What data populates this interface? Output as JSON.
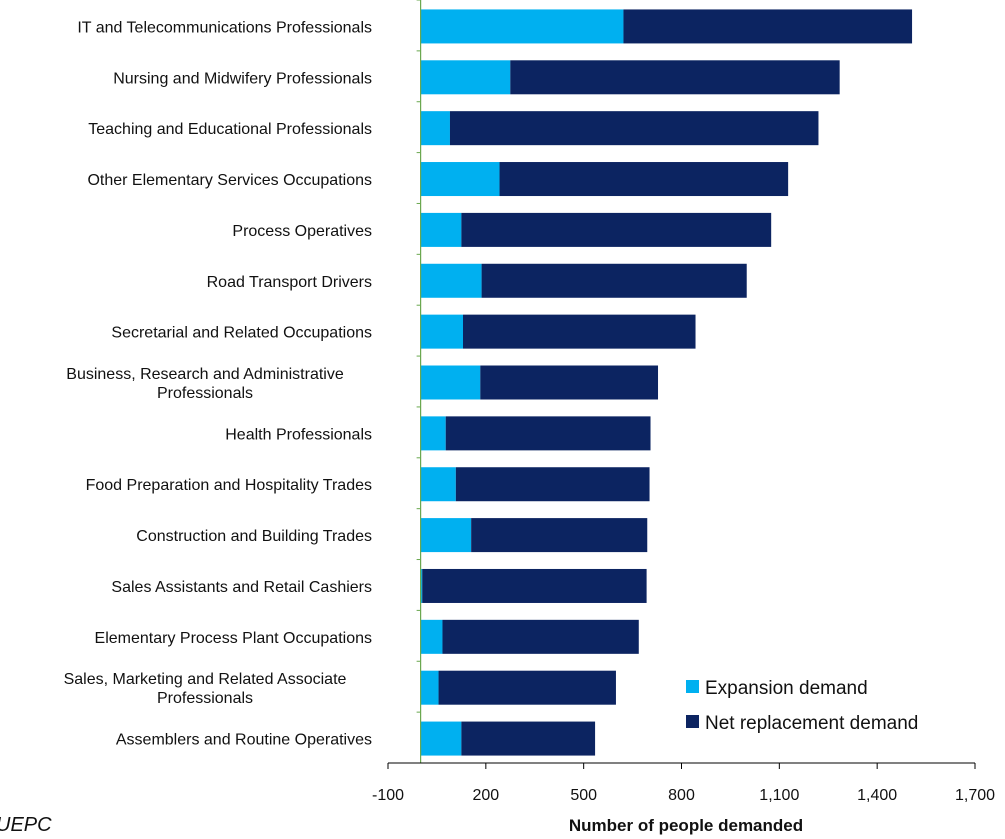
{
  "chart_data": {
    "type": "bar",
    "orientation": "horizontal",
    "stacked": true,
    "categories": [
      "IT and Telecommunications Professionals",
      "Nursing and Midwifery Professionals",
      "Teaching and Educational Professionals",
      "Other Elementary Services Occupations",
      "Process Operatives",
      "Road Transport Drivers",
      "Secretarial and Related Occupations",
      "Business, Research and Administrative Professionals",
      "Health Professionals",
      "Food Preparation and Hospitality Trades",
      "Construction and Building Trades",
      "Sales Assistants and Retail Cashiers",
      "Elementary Process Plant Occupations",
      "Sales, Marketing and Related Associate Professionals",
      "Assemblers and Routine Operatives"
    ],
    "category_lines": [
      [
        "IT and Telecommunications Professionals"
      ],
      [
        "Nursing and Midwifery Professionals"
      ],
      [
        "Teaching and Educational Professionals"
      ],
      [
        "Other Elementary Services Occupations"
      ],
      [
        "Process Operatives"
      ],
      [
        "Road Transport Drivers"
      ],
      [
        "Secretarial and Related Occupations"
      ],
      [
        "Business, Research and Administrative",
        "Professionals"
      ],
      [
        "Health Professionals"
      ],
      [
        "Food Preparation and Hospitality Trades"
      ],
      [
        "Construction and Building Trades"
      ],
      [
        "Sales Assistants and Retail Cashiers"
      ],
      [
        "Elementary Process Plant Occupations"
      ],
      [
        "Sales, Marketing and Related Associate",
        "Professionals"
      ],
      [
        "Assemblers and Routine Operatives"
      ]
    ],
    "series": [
      {
        "name": "Expansion demand",
        "color": "#00b0f0",
        "values": [
          622,
          275,
          90,
          242,
          125,
          187,
          130,
          183,
          77,
          108,
          155,
          5,
          67,
          55,
          125
        ]
      },
      {
        "name": "Net replacement demand",
        "color": "#0c2461",
        "values": [
          885,
          1010,
          1130,
          885,
          950,
          813,
          713,
          545,
          628,
          594,
          540,
          688,
          602,
          544,
          410
        ]
      }
    ],
    "xlim": [
      -100,
      1700
    ],
    "xticks": [
      "-100",
      "200",
      "500",
      "800",
      "1,100",
      "1,400",
      "1,700"
    ],
    "xtick_values": [
      -100,
      200,
      500,
      800,
      1100,
      1400,
      1700
    ],
    "xlabel": "Number of people demanded",
    "ylabel": "",
    "title": "",
    "legend": {
      "placement": "bottom-right",
      "items": [
        "Expansion demand",
        "Net replacement demand"
      ]
    },
    "grid": false
  },
  "source": "UEPC"
}
